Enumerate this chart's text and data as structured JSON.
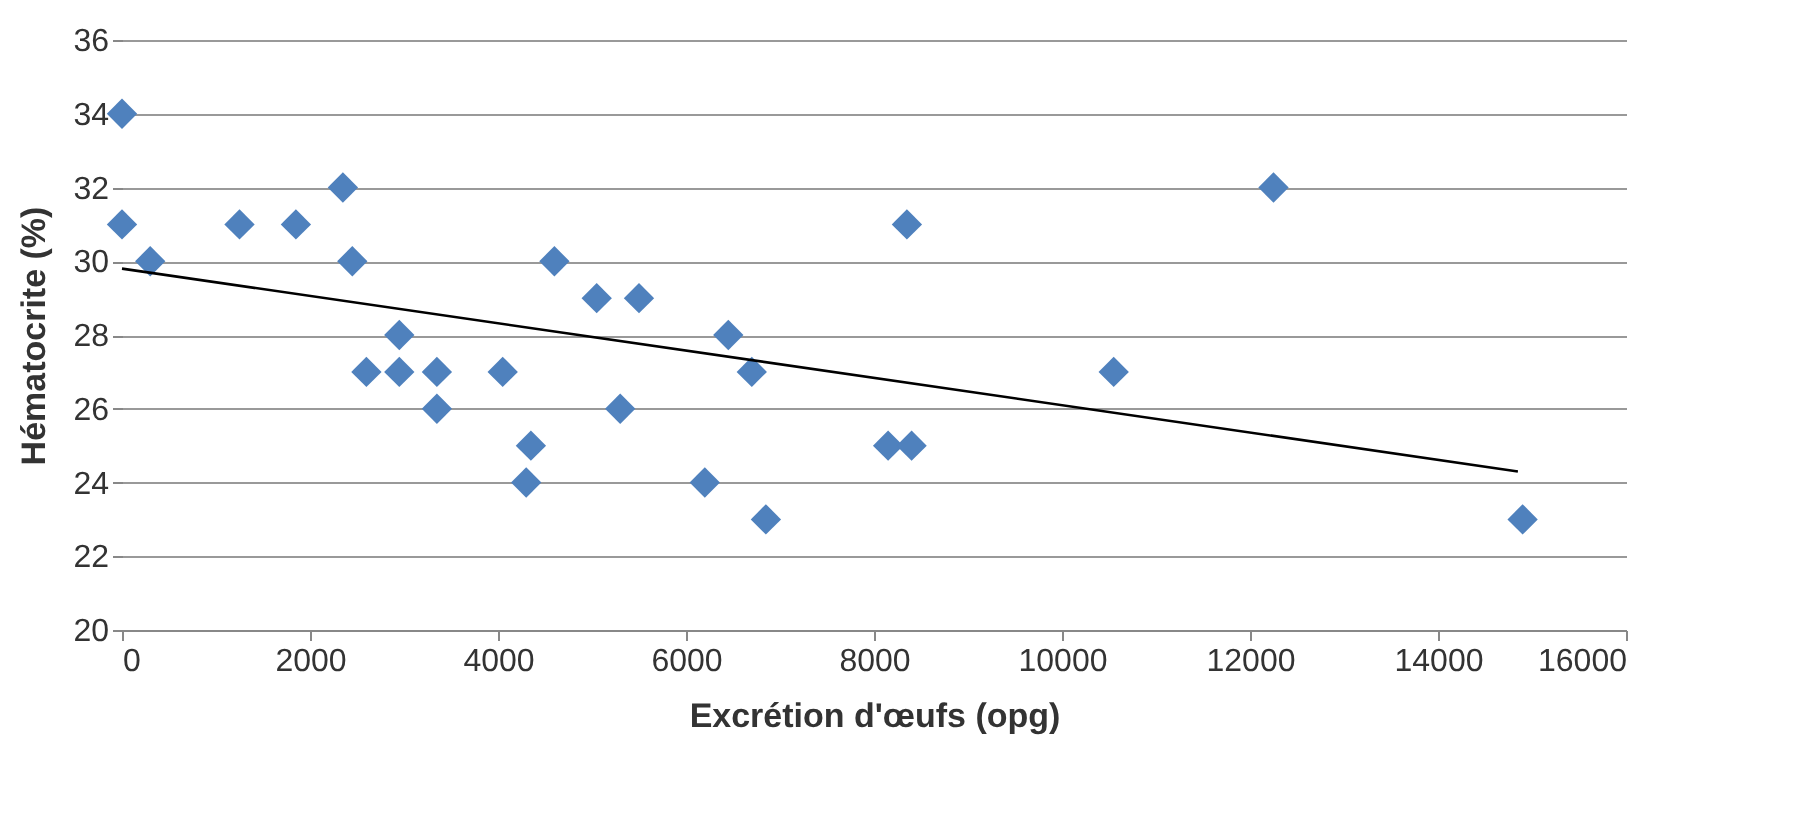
{
  "chart_data": {
    "type": "scatter",
    "xlabel": "Excrétion d'œufs (opg)",
    "ylabel": "Hématocrite (%)",
    "xlim": [
      0,
      16000
    ],
    "xticks": [
      0,
      2000,
      4000,
      6000,
      8000,
      10000,
      12000,
      14000,
      16000
    ],
    "ylim": [
      20,
      36
    ],
    "yticks": [
      20,
      22,
      24,
      26,
      28,
      30,
      32,
      34,
      36
    ],
    "grid": "y",
    "series": [
      {
        "type": "scatter",
        "marker": "diamond",
        "color": "#4f81bd",
        "x": [
          0,
          0,
          300,
          1250,
          1850,
          2350,
          2450,
          2600,
          2950,
          2950,
          3350,
          3350,
          4050,
          4350,
          4300,
          4600,
          5050,
          5500,
          5300,
          6200,
          6450,
          6700,
          6850,
          8150,
          8400,
          8350,
          10550,
          12250,
          14900
        ],
        "values": [
          34,
          31,
          30,
          31,
          31,
          32,
          30,
          27,
          28,
          27,
          27,
          26,
          27,
          25,
          24,
          30,
          29,
          29,
          26,
          24,
          28,
          27,
          23,
          25,
          25,
          31,
          27,
          32,
          23
        ]
      },
      {
        "type": "line",
        "color": "#000000",
        "x": [
          0,
          14850
        ],
        "values": [
          29.8,
          24.3
        ]
      }
    ]
  }
}
